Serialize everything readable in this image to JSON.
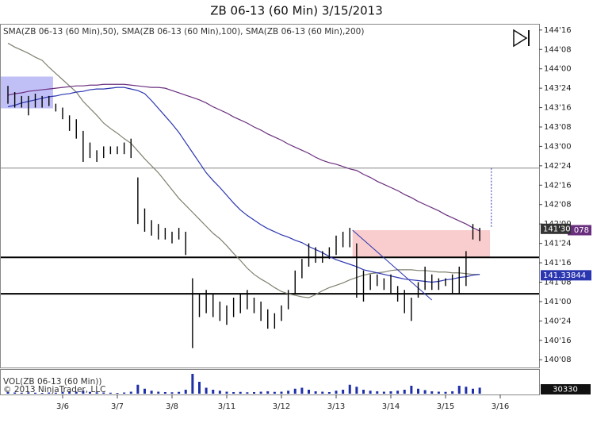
{
  "chart_data": {
    "type": "ohlc",
    "title": "ZB 06-13 (60 Min)  3/15/2013",
    "legend_text": "SMA(ZB 06-13 (60 Min),50), SMA(ZB 06-13 (60 Min),100), SMA(ZB 06-13 (60 Min),200)",
    "volume_title": "VOL(ZB 06-13 (60 Min))",
    "copyright": "© 2013 NinjaTrader, LLC",
    "categories": [
      null,
      null,
      null,
      null,
      null,
      null,
      null,
      null,
      "3/6",
      null,
      null,
      null,
      null,
      null,
      null,
      null,
      "3/7",
      null,
      null,
      null,
      null,
      null,
      null,
      null,
      "3/8",
      null,
      null,
      null,
      null,
      null,
      null,
      null,
      "3/11",
      null,
      null,
      null,
      null,
      null,
      null,
      null,
      "3/12",
      null,
      null,
      null,
      null,
      null,
      null,
      null,
      "3/13",
      null,
      null,
      null,
      null,
      null,
      null,
      null,
      "3/14",
      null,
      null,
      null,
      null,
      null,
      null,
      null,
      "3/15",
      null,
      null,
      null,
      null,
      null,
      null,
      null,
      "3/16"
    ],
    "high": [
      143.78,
      143.7,
      143.65,
      143.65,
      143.68,
      143.65,
      143.65,
      143.55,
      143.5,
      143.4,
      143.35,
      143.2,
      143.05,
      142.95,
      143.0,
      143.0,
      143.0,
      143.05,
      143.1,
      142.6,
      142.2,
      142.05,
      142.0,
      141.95,
      141.9,
      141.95,
      141.9,
      141.3,
      141.1,
      141.15,
      141.1,
      141.0,
      140.95,
      141.05,
      141.1,
      141.15,
      141.05,
      141.0,
      140.9,
      140.85,
      140.95,
      141.15,
      141.4,
      141.55,
      141.75,
      141.7,
      141.65,
      141.7,
      141.85,
      141.9,
      141.95,
      141.75,
      141.4,
      141.35,
      141.35,
      141.3,
      141.35,
      141.2,
      141.15,
      141.05,
      141.25,
      141.45,
      141.35,
      141.3,
      141.3,
      141.35,
      141.45,
      141.65,
      142.0,
      141.95,
      null,
      null,
      null
    ],
    "low": [
      143.55,
      143.5,
      143.5,
      143.4,
      143.5,
      143.5,
      143.52,
      143.45,
      143.35,
      143.2,
      143.1,
      142.8,
      142.85,
      142.8,
      142.85,
      142.9,
      142.9,
      142.9,
      142.85,
      142.0,
      141.9,
      141.85,
      141.8,
      141.8,
      141.75,
      141.8,
      141.6,
      140.4,
      140.8,
      140.85,
      140.8,
      140.75,
      140.7,
      140.8,
      140.85,
      140.9,
      140.85,
      140.75,
      140.65,
      140.65,
      140.75,
      140.9,
      141.1,
      141.3,
      141.45,
      141.5,
      141.5,
      141.55,
      141.6,
      141.7,
      141.7,
      141.05,
      141.0,
      141.15,
      141.2,
      141.15,
      141.1,
      141.0,
      140.85,
      140.75,
      141.05,
      141.15,
      141.15,
      141.15,
      141.2,
      141.1,
      141.1,
      141.2,
      141.8,
      141.78,
      null,
      null,
      null
    ],
    "bar_color": "#000000",
    "series": [
      {
        "color": "#7f7f6f",
        "values": [
          144.33,
          144.28,
          144.24,
          144.2,
          144.15,
          144.11,
          144.02,
          143.94,
          143.86,
          143.78,
          143.7,
          143.58,
          143.49,
          143.4,
          143.3,
          143.23,
          143.17,
          143.1,
          143.04,
          142.94,
          142.84,
          142.75,
          142.66,
          142.55,
          142.44,
          142.33,
          142.24,
          142.15,
          142.06,
          141.97,
          141.88,
          141.81,
          141.72,
          141.62,
          141.53,
          141.43,
          141.35,
          141.29,
          141.24,
          141.18,
          141.13,
          141.1,
          141.08,
          141.06,
          141.05,
          141.09,
          141.14,
          141.18,
          141.21,
          141.24,
          141.28,
          141.31,
          141.34,
          141.36,
          141.37,
          141.38,
          141.4,
          141.41,
          141.41,
          141.41,
          141.4,
          141.4,
          141.39,
          141.38,
          141.38,
          141.37,
          141.37,
          141.36,
          141.35,
          141.35,
          null,
          null,
          null
        ]
      },
      {
        "color": "#2a35b0",
        "values": [
          143.51,
          143.53,
          143.56,
          143.58,
          143.6,
          143.62,
          143.64,
          143.65,
          143.67,
          143.68,
          143.7,
          143.71,
          143.73,
          143.74,
          143.74,
          143.75,
          143.76,
          143.76,
          143.74,
          143.72,
          143.68,
          143.59,
          143.49,
          143.39,
          143.29,
          143.18,
          143.05,
          142.92,
          142.79,
          142.66,
          142.56,
          142.47,
          142.37,
          142.27,
          142.18,
          142.11,
          142.05,
          141.99,
          141.94,
          141.9,
          141.86,
          141.83,
          141.79,
          141.76,
          141.71,
          141.67,
          141.63,
          141.58,
          141.54,
          141.51,
          141.48,
          141.45,
          141.41,
          141.39,
          141.37,
          141.35,
          141.33,
          141.31,
          141.29,
          141.28,
          141.27,
          141.26,
          141.25,
          141.26,
          141.28,
          141.29,
          141.31,
          141.32,
          141.34,
          141.35,
          null,
          null,
          null
        ]
      },
      {
        "color": "#6a2e7e",
        "values": [
          143.66,
          143.68,
          143.69,
          143.71,
          143.72,
          143.73,
          143.74,
          143.75,
          143.76,
          143.77,
          143.78,
          143.78,
          143.79,
          143.79,
          143.8,
          143.8,
          143.8,
          143.8,
          143.79,
          143.78,
          143.77,
          143.76,
          143.76,
          143.75,
          143.72,
          143.69,
          143.66,
          143.63,
          143.6,
          143.56,
          143.51,
          143.47,
          143.43,
          143.38,
          143.34,
          143.3,
          143.25,
          143.21,
          143.16,
          143.12,
          143.08,
          143.03,
          142.99,
          142.95,
          142.91,
          142.86,
          142.82,
          142.79,
          142.77,
          142.74,
          142.71,
          142.69,
          142.64,
          142.6,
          142.55,
          142.51,
          142.47,
          142.43,
          142.38,
          142.34,
          142.29,
          142.25,
          142.21,
          142.17,
          142.12,
          142.08,
          142.04,
          142.0,
          141.95,
          141.91,
          null,
          null,
          null
        ]
      }
    ],
    "volume": [
      8000,
      6000,
      5000,
      7000,
      5000,
      4000,
      6000,
      5000,
      9000,
      12000,
      10000,
      15000,
      9000,
      7000,
      6000,
      5000,
      4000,
      6000,
      10000,
      45000,
      25000,
      15000,
      10000,
      8000,
      7000,
      9000,
      20000,
      100000,
      60000,
      30000,
      20000,
      15000,
      10000,
      8000,
      9000,
      7000,
      8000,
      10000,
      12000,
      9000,
      10000,
      15000,
      25000,
      30000,
      20000,
      12000,
      10000,
      8000,
      15000,
      20000,
      45000,
      35000,
      20000,
      15000,
      12000,
      10000,
      12000,
      15000,
      20000,
      40000,
      25000,
      18000,
      12000,
      10000,
      9000,
      12000,
      40000,
      35000,
      25000,
      30330,
      null,
      null,
      null
    ],
    "volume_color": "#1f2fa8",
    "volume_ylim": [
      0,
      120000
    ],
    "volume_label": {
      "value": 30330,
      "label": "30330"
    },
    "ylim": [
      140.15,
      144.58
    ],
    "yticks": [
      {
        "value": 144.5,
        "label": "144'16"
      },
      {
        "value": 144.25,
        "label": "144'08"
      },
      {
        "value": 144.0,
        "label": "144'00"
      },
      {
        "value": 143.75,
        "label": "143'24"
      },
      {
        "value": 143.5,
        "label": "143'16"
      },
      {
        "value": 143.25,
        "label": "143'08"
      },
      {
        "value": 143.0,
        "label": "143'00"
      },
      {
        "value": 142.75,
        "label": "142'24"
      },
      {
        "value": 142.5,
        "label": "142'16"
      },
      {
        "value": 142.25,
        "label": "142'08"
      },
      {
        "value": 142.0,
        "label": "142'00"
      },
      {
        "value": 141.75,
        "label": "141'24"
      },
      {
        "value": 141.5,
        "label": "141'16"
      },
      {
        "value": 141.25,
        "label": "141'08"
      },
      {
        "value": 141.0,
        "label": "141'00"
      },
      {
        "value": 140.75,
        "label": "140'24"
      },
      {
        "value": 140.5,
        "label": "140'16"
      },
      {
        "value": 140.25,
        "label": "140'08"
      }
    ],
    "price_markers": [
      {
        "value": 141.92,
        "label": "078",
        "color": "#6a2e7e"
      },
      {
        "value": 141.9375,
        "label": "141'30",
        "color": "#333333"
      },
      {
        "value": 141.33844,
        "label": "141.33844",
        "color": "#2a35b0"
      }
    ],
    "zones": [
      {
        "x": [
          -1.16,
          6.6
        ],
        "y": [
          143.49,
          143.9
        ],
        "color": "#8c8cf0"
      },
      {
        "x": [
          50.4,
          70.5
        ],
        "y": [
          141.57,
          141.92
        ],
        "color": "#f4a4a4"
      }
    ],
    "horizontal_lines": [
      {
        "value": 141.57,
        "color": "#000000",
        "width": 2
      },
      {
        "value": 141.1,
        "color": "#000000",
        "width": 2
      },
      {
        "value": 142.72,
        "color": "#777777",
        "width": 0.8
      }
    ],
    "trend_lines": [
      {
        "x": [
          50.4,
          62
        ],
        "y": [
          141.92,
          141.02
        ],
        "color": "#2a35b0",
        "dash": false
      },
      {
        "x": [
          70.7,
          70.7
        ],
        "y": [
          142.72,
          141.95
        ],
        "color": "#2a35b0",
        "dash": true
      }
    ]
  }
}
